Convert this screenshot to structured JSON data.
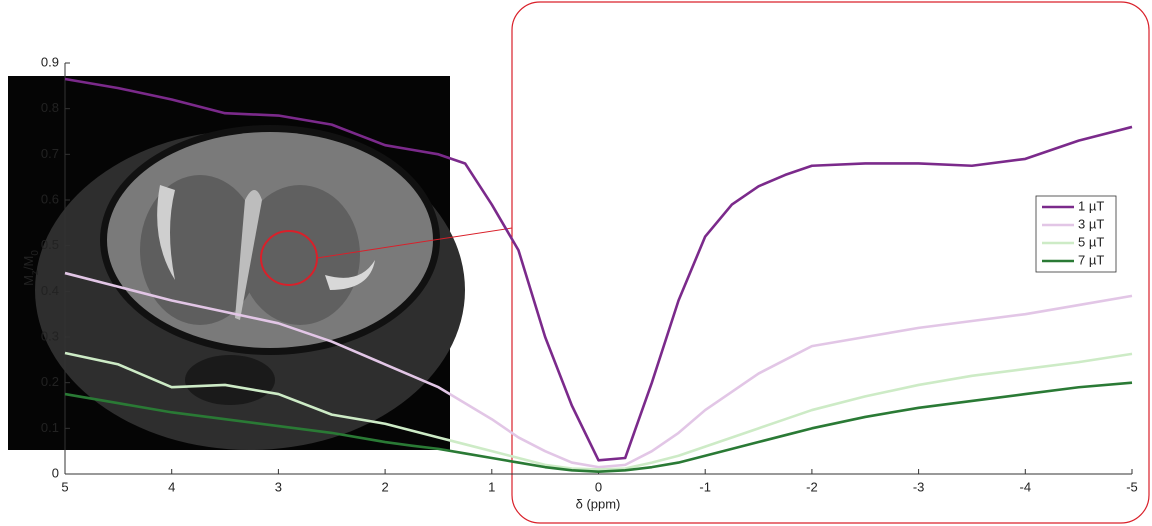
{
  "chart_data": {
    "type": "line",
    "xlabel": "δ (ppm)",
    "ylabel_parts": [
      "M",
      "z",
      "/M",
      "0"
    ],
    "x": [
      5,
      4.5,
      4,
      3.5,
      3,
      2.5,
      2,
      1.75,
      1.5,
      1.25,
      1,
      0.75,
      0.5,
      0.25,
      0,
      -0.25,
      -0.5,
      -0.75,
      -1,
      -1.25,
      -1.5,
      -1.75,
      -2,
      -2.5,
      -3,
      -3.5,
      -4,
      -4.5,
      -5
    ],
    "series": [
      {
        "name": "1 µT",
        "color": "#7b2a8b",
        "values": [
          0.865,
          0.845,
          0.82,
          0.79,
          0.785,
          0.765,
          0.72,
          0.71,
          0.7,
          0.68,
          0.59,
          0.49,
          0.3,
          0.15,
          0.03,
          0.035,
          0.2,
          0.38,
          0.52,
          0.59,
          0.63,
          0.655,
          0.675,
          0.68,
          0.68,
          0.675,
          0.69,
          0.73,
          0.76
        ]
      },
      {
        "name": "3 µT",
        "color": "#e2c6e6",
        "values": [
          0.44,
          0.41,
          0.38,
          0.355,
          0.33,
          0.29,
          0.24,
          0.215,
          0.19,
          0.155,
          0.12,
          0.08,
          0.05,
          0.025,
          0.015,
          0.02,
          0.05,
          0.09,
          0.14,
          0.18,
          0.22,
          0.25,
          0.28,
          0.3,
          0.32,
          0.335,
          0.35,
          0.37,
          0.39
        ]
      },
      {
        "name": "5 µT",
        "color": "#cdebc6",
        "values": [
          0.265,
          0.24,
          0.19,
          0.195,
          0.175,
          0.13,
          0.11,
          0.095,
          0.08,
          0.065,
          0.05,
          0.035,
          0.02,
          0.012,
          0.01,
          0.012,
          0.025,
          0.04,
          0.06,
          0.08,
          0.1,
          0.12,
          0.14,
          0.17,
          0.195,
          0.215,
          0.23,
          0.245,
          0.263
        ]
      },
      {
        "name": "7 µT",
        "color": "#2a7a35",
        "values": [
          0.175,
          0.155,
          0.135,
          0.12,
          0.105,
          0.09,
          0.07,
          0.062,
          0.055,
          0.045,
          0.035,
          0.025,
          0.015,
          0.008,
          0.005,
          0.008,
          0.015,
          0.025,
          0.04,
          0.055,
          0.07,
          0.085,
          0.1,
          0.125,
          0.145,
          0.16,
          0.175,
          0.19,
          0.2
        ]
      }
    ],
    "xlim": [
      5,
      -5
    ],
    "xticks": [
      5,
      4,
      3,
      2,
      1,
      0,
      -1,
      -2,
      -3,
      -4,
      -5
    ],
    "ylim": [
      0,
      0.9
    ],
    "yticks": [
      0,
      0.1,
      0.2,
      0.3,
      0.4,
      0.5,
      0.6,
      0.7,
      0.8,
      0.9
    ],
    "grid": false,
    "legend": "right"
  }
}
